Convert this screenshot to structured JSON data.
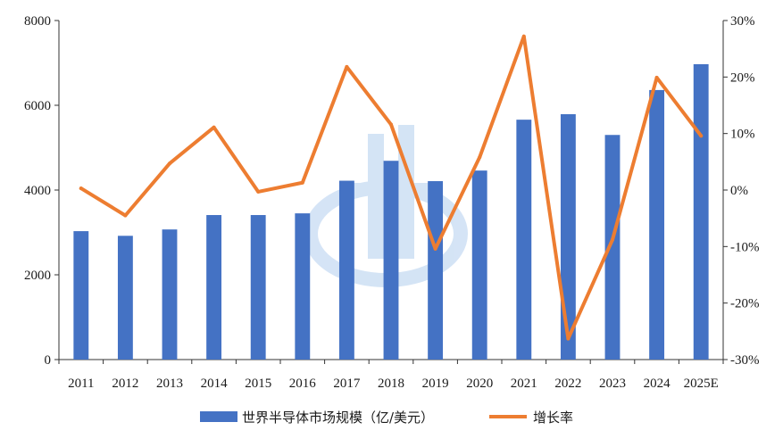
{
  "chart_data": {
    "type": "bar",
    "categories": [
      "2011",
      "2012",
      "2013",
      "2014",
      "2015",
      "2016",
      "2017",
      "2018",
      "2019",
      "2020",
      "2021",
      "2022",
      "2023",
      "2024",
      "2025E"
    ],
    "series": [
      {
        "name": "世界半导体市场规模（亿/美元）",
        "type": "bar",
        "axis": "left",
        "color": "#4472C4",
        "values": [
          3030,
          2920,
          3070,
          3410,
          3410,
          3450,
          4220,
          4690,
          4210,
          4460,
          5660,
          5790,
          5300,
          6360,
          6970
        ]
      },
      {
        "name": "增长率",
        "type": "line",
        "axis": "right",
        "color": "#ED7D31",
        "values": [
          0.3,
          -4.5,
          4.7,
          11.1,
          -0.3,
          1.3,
          21.8,
          11.6,
          -10.4,
          5.8,
          27.2,
          -26.3,
          -8.8,
          19.9,
          9.6
        ]
      }
    ],
    "y_left": {
      "min": 0,
      "max": 8000,
      "ticks": [
        "0",
        "2000",
        "4000",
        "6000",
        "8000"
      ],
      "tick_values": [
        0,
        2000,
        4000,
        6000,
        8000
      ]
    },
    "y_right": {
      "min": -30,
      "max": 30,
      "ticks": [
        "-30%",
        "-20%",
        "-10%",
        "0%",
        "10%",
        "20%",
        "30%"
      ],
      "tick_values": [
        -30,
        -20,
        -10,
        0,
        10,
        20,
        30
      ]
    },
    "grid": false,
    "legend_position": "bottom"
  }
}
